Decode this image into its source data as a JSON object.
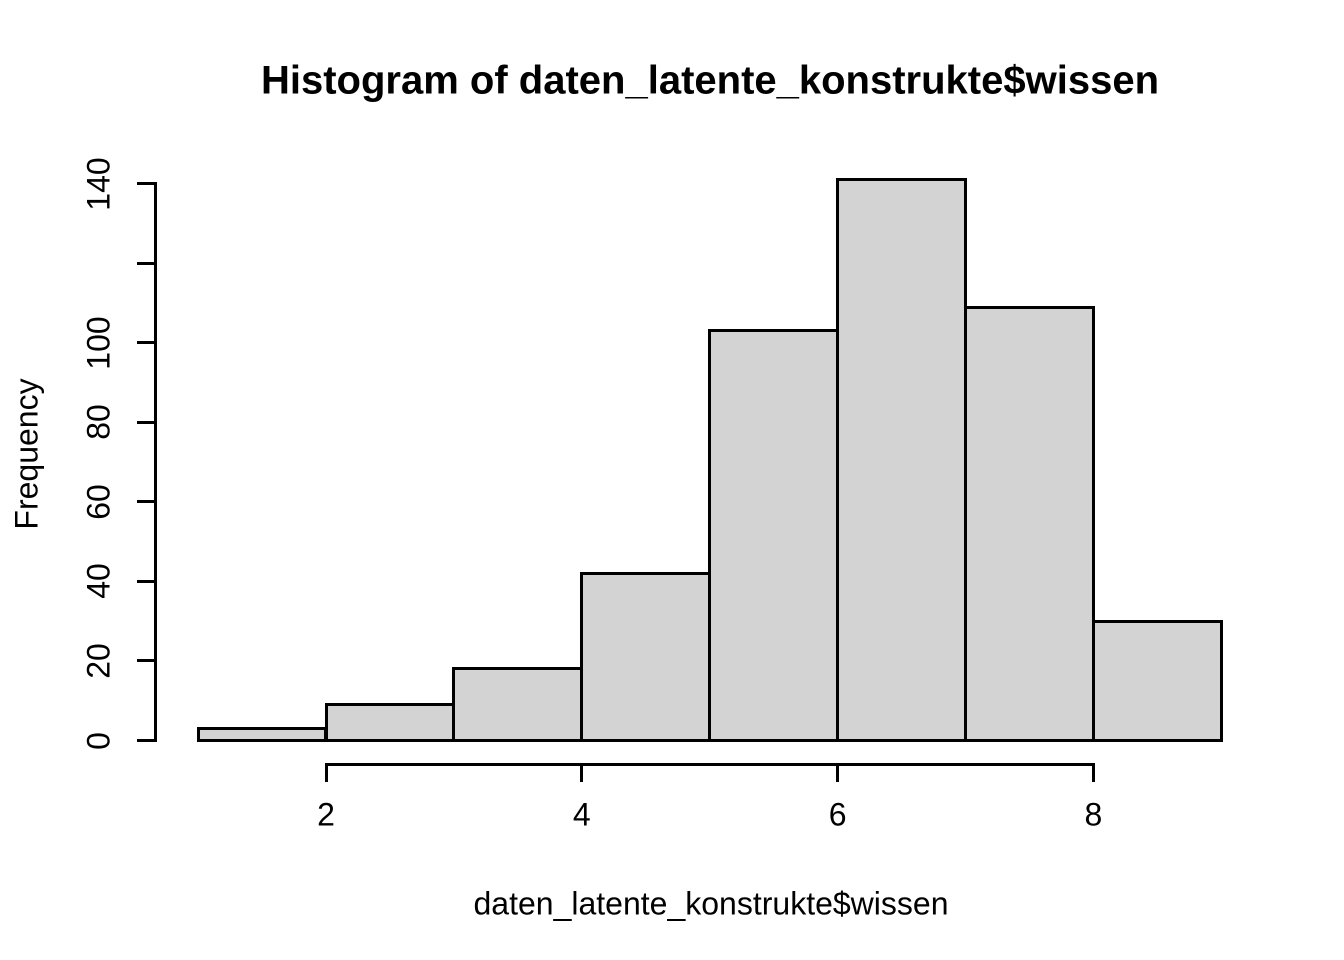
{
  "chart_data": {
    "type": "bar",
    "subtype": "histogram",
    "title": "Histogram of daten_latente_konstrukte$wissen",
    "xlabel": "daten_latente_konstrukte$wissen",
    "ylabel": "Frequency",
    "bin_edges": [
      1,
      2,
      3,
      4,
      5,
      6,
      7,
      8,
      9
    ],
    "counts": [
      3,
      9,
      18,
      42,
      103,
      141,
      109,
      30
    ],
    "x_ticks": [
      2,
      4,
      6,
      8
    ],
    "x_tick_labels": [
      "2",
      "4",
      "6",
      "8"
    ],
    "y_ticks": [
      0,
      20,
      40,
      60,
      80,
      100,
      120,
      140
    ],
    "y_tick_labels": [
      "0",
      "20",
      "40",
      "60",
      "80",
      "100",
      "",
      "140"
    ],
    "xlim": [
      1,
      9
    ],
    "ylim": [
      0,
      140
    ],
    "grid": false,
    "legend": "none",
    "bar_fill": "#d3d3d3",
    "bar_stroke": "#000000",
    "axis_color": "#000000",
    "text_color": "#000000",
    "background": "#ffffff"
  }
}
